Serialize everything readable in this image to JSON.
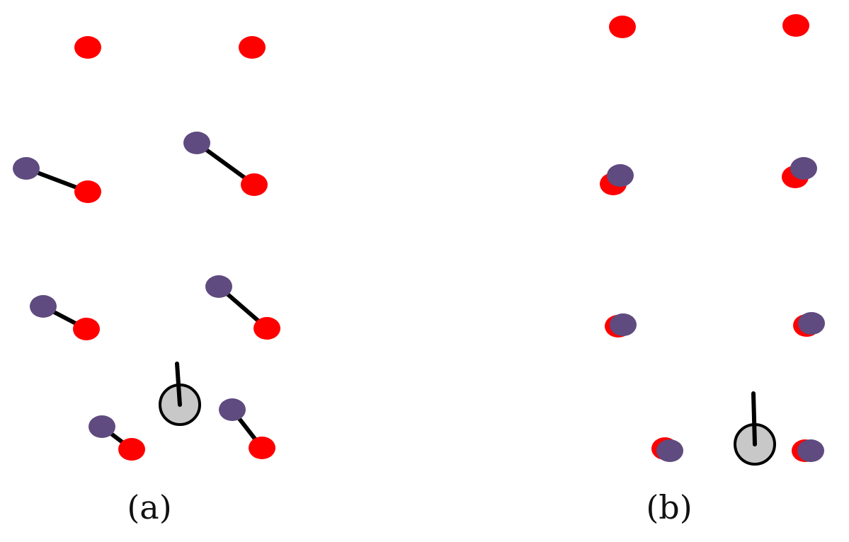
{
  "colors": {
    "target": "#ff0000",
    "agent": "#5f4b7f",
    "link": "#000000",
    "device_fill": "#c8c8c8",
    "device_stroke": "#000000"
  },
  "panels": [
    {
      "id": "a",
      "label": "(a)"
    },
    {
      "id": "b",
      "label": "(b)"
    }
  ]
}
